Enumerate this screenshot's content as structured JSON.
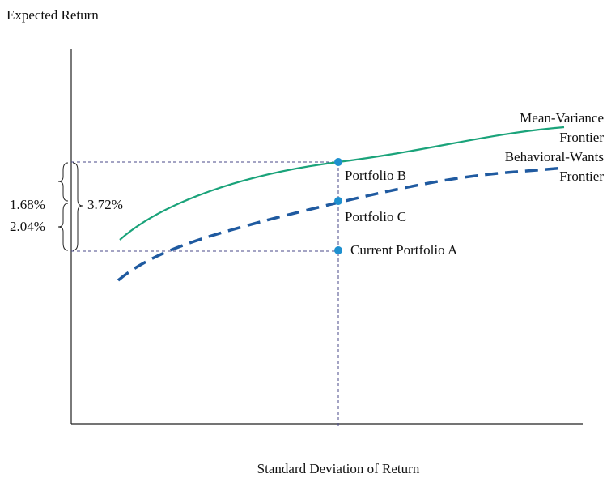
{
  "axes": {
    "y_label": "Expected Return",
    "x_label": "Standard Deviation of Return"
  },
  "curves": [
    {
      "label_lines": [
        "Mean-Variance",
        "Frontier"
      ]
    },
    {
      "label_lines": [
        "Behavioral-Wants",
        "Frontier"
      ]
    }
  ],
  "points": [
    {
      "label": "Portfolio B"
    },
    {
      "label": "Portfolio C"
    },
    {
      "label": "Current Portfolio A"
    }
  ],
  "annotations": {
    "upper_gap": "1.68%",
    "lower_gap": "2.04%",
    "total_gap": "3.72%"
  }
}
